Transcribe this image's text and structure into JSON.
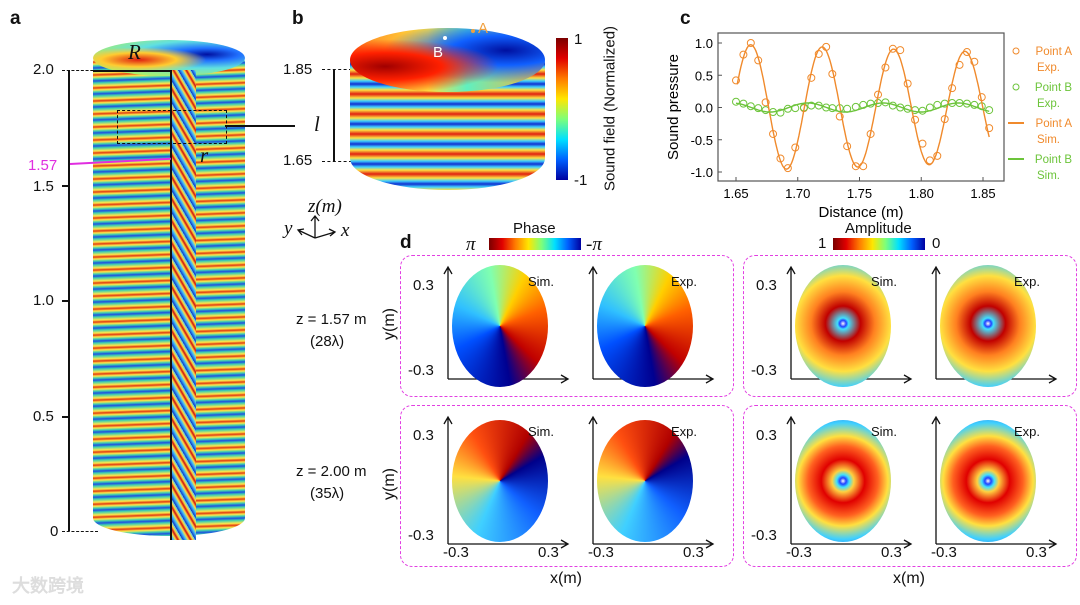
{
  "panels": {
    "a": "a",
    "b": "b",
    "c": "c",
    "d": "d"
  },
  "panel_a": {
    "ticks": [
      "2.0",
      "1.5",
      "1.0",
      "0.5",
      "0"
    ],
    "highlight": "1.57",
    "label_R": "R",
    "label_r": "r",
    "label_l": "l"
  },
  "panel_b": {
    "ticks": [
      "1.85",
      "1.65"
    ],
    "point_a": "A",
    "point_b": "B",
    "colorbar_max": "1",
    "colorbar_min": "-1",
    "colorbar_label": "Sound field (Normalized)",
    "axis_z": "z(m)",
    "axis_x": "x",
    "axis_y": "y"
  },
  "chart_data": {
    "type": "line",
    "xlabel": "Distance (m)",
    "ylabel": "Sound pressure",
    "xlim": [
      1.64,
      1.86
    ],
    "ylim": [
      -1.1,
      1.1
    ],
    "xticks": [
      "1.65",
      "1.70",
      "1.75",
      "1.80",
      "1.85"
    ],
    "yticks": [
      "1.0",
      "0.5",
      "0.0",
      "-0.5",
      "-1.0"
    ],
    "legend_position": "right",
    "x": [
      1.65,
      1.656,
      1.662,
      1.668,
      1.674,
      1.68,
      1.686,
      1.692,
      1.698,
      1.705,
      1.711,
      1.717,
      1.723,
      1.728,
      1.734,
      1.74,
      1.747,
      1.753,
      1.759,
      1.765,
      1.771,
      1.777,
      1.783,
      1.789,
      1.795,
      1.801,
      1.807,
      1.813,
      1.819,
      1.825,
      1.831,
      1.837,
      1.843,
      1.849,
      1.855
    ],
    "series": [
      {
        "name": "Point A Exp.",
        "name1": "Point A",
        "name2": "Exp.",
        "kind": "scatter",
        "color": "#f08a2c",
        "values": [
          0.42,
          0.82,
          1.0,
          0.73,
          0.08,
          -0.41,
          -0.79,
          -0.94,
          -0.62,
          -0.01,
          0.46,
          0.83,
          0.94,
          0.52,
          -0.14,
          -0.6,
          -0.91,
          -0.91,
          -0.41,
          0.2,
          0.62,
          0.91,
          0.89,
          0.37,
          -0.19,
          -0.56,
          -0.82,
          -0.75,
          -0.18,
          0.3,
          0.66,
          0.86,
          0.71,
          0.16,
          -0.32
        ]
      },
      {
        "name": "Point B Exp.",
        "name1": "Point B",
        "name2": "Exp.",
        "kind": "scatter",
        "color": "#6cc43a",
        "values": [
          0.09,
          0.06,
          0.02,
          -0.01,
          -0.04,
          -0.07,
          -0.08,
          -0.02,
          -0.01,
          0.0,
          0.03,
          0.03,
          0.0,
          -0.01,
          -0.01,
          -0.02,
          0.01,
          0.04,
          0.06,
          0.07,
          0.08,
          0.03,
          0.0,
          -0.02,
          -0.04,
          -0.05,
          0.0,
          0.04,
          0.06,
          0.07,
          0.07,
          0.06,
          0.04,
          0.02,
          -0.04
        ]
      },
      {
        "name": "Point A Sim.",
        "name1": "Point A",
        "name2": "Sim.",
        "kind": "line",
        "color": "#f08a2c",
        "model": {
          "amp_start": 0.98,
          "amp_end": 0.86,
          "wavelength": 0.0578,
          "peak_at": 1.662,
          "x_range": [
            1.651,
            1.855
          ]
        }
      },
      {
        "name": "Point B Sim.",
        "name1": "Point B",
        "name2": "Sim.",
        "kind": "line",
        "color": "#6cc43a",
        "model": {
          "amp_start": 0.07,
          "amp_end": 0.07,
          "wavelength": 0.061,
          "peak_at": 1.708,
          "x_range": [
            1.65,
            1.855
          ]
        }
      }
    ]
  },
  "panel_d": {
    "phase_title": "Phase",
    "phase_max": "π",
    "phase_min": "-π",
    "amp_title": "Amplitude",
    "amp_max": "1",
    "amp_min": "0",
    "rows": [
      {
        "z": "z = 1.57 m",
        "lambda": "(28λ)"
      },
      {
        "z": "z = 2.00 m",
        "lambda": "(35λ)"
      }
    ],
    "sim": "Sim.",
    "exp": "Exp.",
    "ytick_top": "0.3",
    "ytick_bottom": "-0.3",
    "xtick_left": "-0.3",
    "xtick_right": "0.3",
    "xlabel": "x(m)",
    "ylabel": "y(m)"
  },
  "watermark": "大数跨境"
}
